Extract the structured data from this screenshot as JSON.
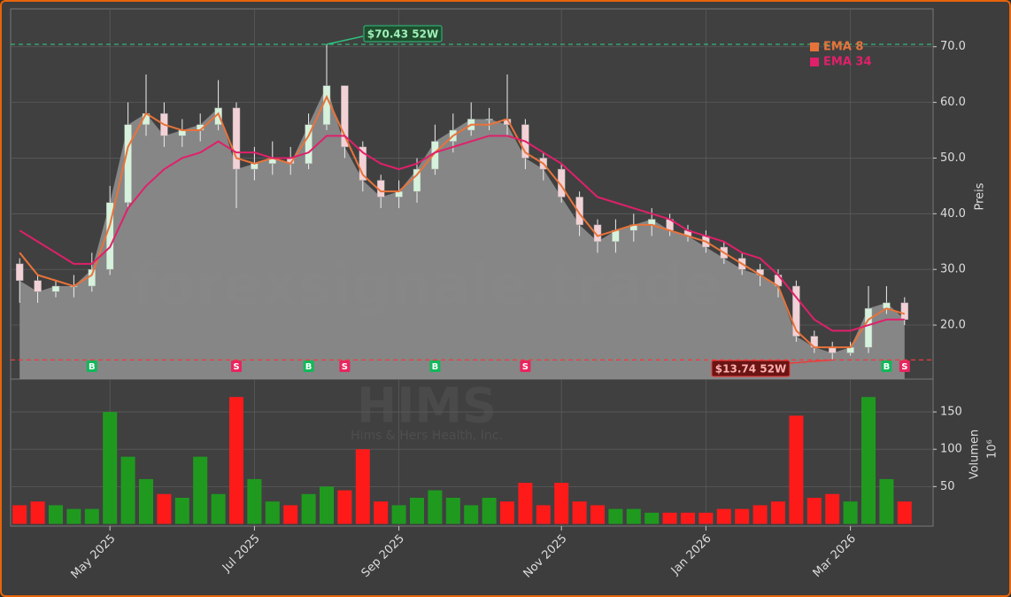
{
  "chart_data": {
    "type": "candlestick",
    "title": "HIMS",
    "subtitle": "Hims & Hers Health, Inc.",
    "watermark": "forexsignale.trade",
    "categories": [
      null,
      null,
      null,
      null,
      null,
      "May 2025",
      null,
      null,
      null,
      null,
      null,
      null,
      null,
      "Jul 2025",
      null,
      null,
      null,
      null,
      null,
      null,
      null,
      "Sep 2025",
      null,
      null,
      null,
      null,
      null,
      null,
      null,
      null,
      "Nov 2025",
      null,
      null,
      null,
      null,
      null,
      null,
      null,
      "Jan 2026",
      null,
      null,
      null,
      null,
      null,
      null,
      null,
      "Mar 2026",
      null,
      null,
      null
    ],
    "open": [
      31,
      28,
      26,
      27,
      27,
      30,
      42,
      56,
      58,
      54,
      55,
      56,
      59,
      48,
      49,
      50,
      49,
      56,
      63,
      52,
      46,
      43,
      44,
      48,
      53,
      55,
      57,
      57,
      56,
      50,
      48,
      43,
      38,
      35,
      37,
      38,
      39,
      37,
      36,
      34,
      32,
      30,
      29,
      27,
      18,
      16,
      15,
      16,
      23,
      24
    ],
    "high": [
      32,
      29,
      28,
      29,
      33,
      45,
      60,
      65,
      60,
      57,
      58,
      64,
      60,
      52,
      53,
      52,
      58,
      70.43,
      63,
      53,
      47,
      46,
      50,
      56,
      58,
      60,
      59,
      65,
      57,
      51,
      49,
      44,
      39,
      39,
      40,
      41,
      40,
      38,
      37,
      35,
      33,
      31,
      30,
      28,
      19,
      17,
      17,
      27,
      27,
      25
    ],
    "low": [
      24,
      24,
      25,
      25,
      26,
      29,
      41,
      54,
      52,
      52,
      53,
      55,
      41,
      46,
      47,
      47,
      48,
      55,
      50,
      44,
      41,
      41,
      42,
      47,
      51,
      54,
      55,
      54,
      48,
      46,
      42,
      36,
      33,
      33,
      35,
      36,
      36,
      35,
      33,
      31,
      29,
      27,
      25,
      17,
      15,
      13.74,
      14.5,
      15,
      22,
      20
    ],
    "close": [
      28,
      26,
      27,
      27,
      30,
      42,
      56,
      58,
      54,
      55,
      56,
      59,
      48,
      49,
      50,
      49,
      56,
      63,
      52,
      46,
      43,
      44,
      48,
      53,
      55,
      57,
      57,
      56,
      50,
      48,
      43,
      38,
      35,
      37,
      38,
      39,
      37,
      36,
      34,
      32,
      30,
      29,
      27,
      18,
      16,
      15,
      16,
      23,
      24,
      21
    ],
    "up_color": "#d6f2dc",
    "down_color": "#f2d2d6",
    "wick_color": "#eeeeee",
    "area_color": "#8a8a8a",
    "series": [
      {
        "name": "EMA 8",
        "color": "#e8733a",
        "values": [
          33,
          29,
          28,
          27,
          29,
          38,
          52,
          58,
          56,
          55,
          55,
          58,
          50,
          49,
          50,
          49,
          54,
          61,
          54,
          47,
          44,
          44,
          47,
          51,
          54,
          56,
          56,
          57,
          51,
          49,
          45,
          40,
          36,
          37,
          38,
          38,
          37,
          36,
          35,
          33,
          31,
          29,
          27,
          19,
          16,
          16,
          16,
          21,
          23,
          22
        ]
      },
      {
        "name": "EMA 34",
        "color": "#e0206a",
        "values": [
          37,
          35,
          33,
          31,
          31,
          34,
          41,
          45,
          48,
          50,
          51,
          53,
          51,
          51,
          50,
          50,
          51,
          54,
          54,
          51,
          49,
          48,
          49,
          51,
          52,
          53,
          54,
          54,
          53,
          51,
          49,
          46,
          43,
          42,
          41,
          40,
          39,
          37,
          36,
          35,
          33,
          32,
          29,
          25,
          21,
          19,
          19,
          20,
          21,
          21
        ]
      }
    ],
    "legend": "upper right",
    "ylim": [
      10.3,
      76.8
    ],
    "yticks": [
      {
        "value": 20,
        "label": "20.0"
      },
      {
        "value": 30,
        "label": "30.0"
      },
      {
        "value": 40,
        "label": "40.0"
      },
      {
        "value": 50,
        "label": "50.0"
      },
      {
        "value": 60,
        "label": "60.0"
      },
      {
        "value": 70,
        "label": "70.0"
      }
    ],
    "ylabel": "Preis",
    "grid": true,
    "annotations": [
      {
        "value": 70.43,
        "label": "$70.43 52W",
        "color": "#2ec27e"
      },
      {
        "value": 13.74,
        "label": "$13.74 52W",
        "color": "#f03a3a"
      }
    ],
    "signals": [
      null,
      null,
      null,
      null,
      "B",
      null,
      null,
      null,
      null,
      null,
      null,
      null,
      "S",
      null,
      null,
      null,
      "B",
      null,
      "S",
      null,
      null,
      null,
      null,
      "B",
      null,
      null,
      null,
      null,
      "S",
      null,
      null,
      null,
      null,
      null,
      null,
      null,
      null,
      null,
      null,
      null,
      null,
      null,
      null,
      null,
      null,
      null,
      null,
      null,
      "B",
      "S"
    ],
    "signal_colors": {
      "B": "#12b85a",
      "S": "#e8245e"
    },
    "volume": {
      "values": [
        25,
        30,
        25,
        20,
        20,
        150,
        90,
        60,
        40,
        35,
        90,
        40,
        170,
        60,
        30,
        25,
        40,
        50,
        45,
        100,
        30,
        25,
        35,
        45,
        35,
        25,
        35,
        30,
        55,
        25,
        55,
        30,
        25,
        20,
        20,
        15,
        15,
        15,
        15,
        20,
        20,
        25,
        30,
        145,
        35,
        40,
        30,
        170,
        60,
        30
      ],
      "up_color": "#1f9a1f",
      "down_color": "#ff1a1a",
      "ylim": [
        -3,
        194
      ],
      "yticks": [
        50,
        100,
        150
      ],
      "ylabel": "Volumen",
      "unit": "10⁶"
    }
  }
}
